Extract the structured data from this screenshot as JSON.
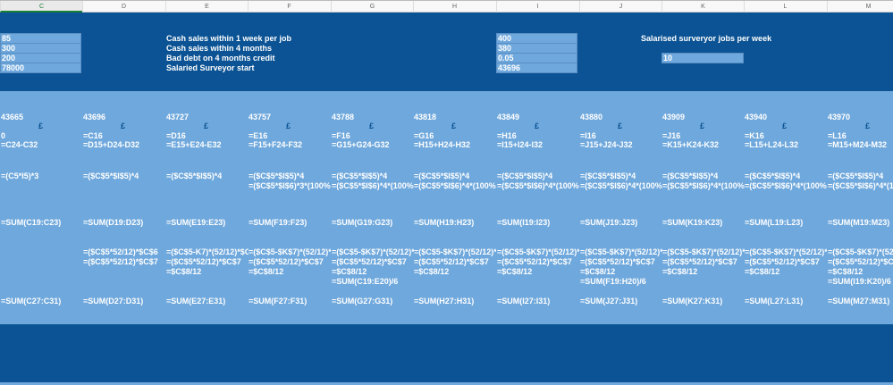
{
  "header": {
    "columns": [
      "C",
      "D",
      "E",
      "F",
      "G",
      "H",
      "I",
      "J",
      "K",
      "L",
      "M"
    ],
    "selected": "C"
  },
  "inputs": {
    "c_values": [
      "85",
      "300",
      "200",
      "78000"
    ],
    "labels": [
      "Cash sales within 1 week per job",
      "Cash sales within 4 months",
      "Bad debt on 4 months credit",
      "Salaried Surveyor start"
    ],
    "i_values": [
      "400",
      "380",
      "0.05",
      "43696"
    ],
    "salaried_label": "Salarised surveryor jobs per week",
    "salaried_value": "10"
  },
  "colors": {
    "dark": "#0b5394",
    "light": "#6fa8dc"
  },
  "currency_symbol": "£",
  "columns": [
    {
      "date": "43665",
      "r1": "0",
      "r2": "=C24-C32",
      "s1": "=(C5*I5)*3",
      "s2": "",
      "sum1": "=SUM(C19:C23)",
      "c1": "",
      "c2": "",
      "c3": "",
      "c4": "",
      "sum2": "=SUM(C27:C31)"
    },
    {
      "date": "43696",
      "r1": "=C16",
      "r2": "=D15+D24-D32",
      "s1": "=($C$5*$I$5)*4",
      "s2": "",
      "sum1": "=SUM(D19:D23)",
      "c1": "=($C$5*52/12)*$C$6",
      "c2": "=($C$5*52/12)*$C$7",
      "c3": "",
      "c4": "",
      "sum2": "=SUM(D27:D31)"
    },
    {
      "date": "43727",
      "r1": "=D16",
      "r2": "=E15+E24-E32",
      "s1": "=($C$5*$I$5)*4",
      "s2": "",
      "sum1": "=SUM(E19:E23)",
      "c1": "=($C$5-K7)*(52/12)*$C$",
      "c2": "=($C$5*52/12)*$C$7",
      "c3": "=$C$8/12",
      "c4": "",
      "sum2": "=SUM(E27:E31)"
    },
    {
      "date": "43757",
      "r1": "=E16",
      "r2": "=F15+F24-F32",
      "s1": "=($C$5*$I$5)*4",
      "s2": "=($C$5*$I$6)*3*(100%-",
      "sum1": "=SUM(F19:F23)",
      "c1": "=($C$5-$K$7)*(52/12)*$",
      "c2": "=($C$5*52/12)*$C$7",
      "c3": "=$C$8/12",
      "c4": "",
      "sum2": "=SUM(F27:F31)"
    },
    {
      "date": "43788",
      "r1": "=F16",
      "r2": "=G15+G24-G32",
      "s1": "=($C$5*$I$5)*4",
      "s2": "=($C$5*$I$6)*4*(100%-",
      "sum1": "=SUM(G19:G23)",
      "c1": "=($C$5-$K$7)*(52/12)*$",
      "c2": "=($C$5*52/12)*$C$7",
      "c3": "=$C$8/12",
      "c4": "=SUM(C19:E20)/6",
      "sum2": "=SUM(G27:G31)"
    },
    {
      "date": "43818",
      "r1": "=G16",
      "r2": "=H15+H24-H32",
      "s1": "=($C$5*$I$5)*4",
      "s2": "=($C$5*$I$6)*4*(100%-",
      "sum1": "=SUM(H19:H23)",
      "c1": "=($C$5-$K$7)*(52/12)*$",
      "c2": "=($C$5*52/12)*$C$7",
      "c3": "=$C$8/12",
      "c4": "",
      "sum2": "=SUM(H27:H31)"
    },
    {
      "date": "43849",
      "r1": "=H16",
      "r2": "=I15+I24-I32",
      "s1": "=($C$5*$I$5)*4",
      "s2": "=($C$5*$I$6)*4*(100%-",
      "sum1": "=SUM(I19:I23)",
      "c1": "=($C$5-$K$7)*(52/12)*$",
      "c2": "=($C$5*52/12)*$C$7",
      "c3": "=$C$8/12",
      "c4": "",
      "sum2": "=SUM(I27:I31)"
    },
    {
      "date": "43880",
      "r1": "=I16",
      "r2": "=J15+J24-J32",
      "s1": "=($C$5*$I$5)*4",
      "s2": "=($C$5*$I$6)*4*(100%-",
      "sum1": "=SUM(J19:J23)",
      "c1": "=($C$5-$K$7)*(52/12)*$",
      "c2": "=($C$5*52/12)*$C$7",
      "c3": "=$C$8/12",
      "c4": "=SUM(F19:H20)/6",
      "sum2": "=SUM(J27:J31)"
    },
    {
      "date": "43909",
      "r1": "=J16",
      "r2": "=K15+K24-K32",
      "s1": "=($C$5*$I$5)*4",
      "s2": "=($C$5*$I$6)*4*(100%-",
      "sum1": "=SUM(K19:K23)",
      "c1": "=($C$5-$K$7)*(52/12)*$",
      "c2": "=($C$5*52/12)*$C$7",
      "c3": "=$C$8/12",
      "c4": "",
      "sum2": "=SUM(K27:K31)"
    },
    {
      "date": "43940",
      "r1": "=K16",
      "r2": "=L15+L24-L32",
      "s1": "=($C$5*$I$5)*4",
      "s2": "=($C$5*$I$6)*4*(100%-",
      "sum1": "=SUM(L19:L23)",
      "c1": "=($C$5-$K$7)*(52/12)*$",
      "c2": "=($C$5*52/12)*$C$7",
      "c3": "=$C$8/12",
      "c4": "",
      "sum2": "=SUM(L27:L31)"
    },
    {
      "date": "43970",
      "r1": "=L16",
      "r2": "=M15+M24-M32",
      "s1": "=($C$5*$I$5)*4",
      "s2": "=($C$5*$I$6)*4*(100%-",
      "sum1": "=SUM(M19:M23)",
      "c1": "=($C$5-$K$7)*(52/12)*$",
      "c2": "=($C$5*52/12)*$C$7",
      "c3": "=$C$8/12",
      "c4": "=SUM(I19:K20)/6",
      "sum2": "=SUM(M27:M31)"
    }
  ]
}
